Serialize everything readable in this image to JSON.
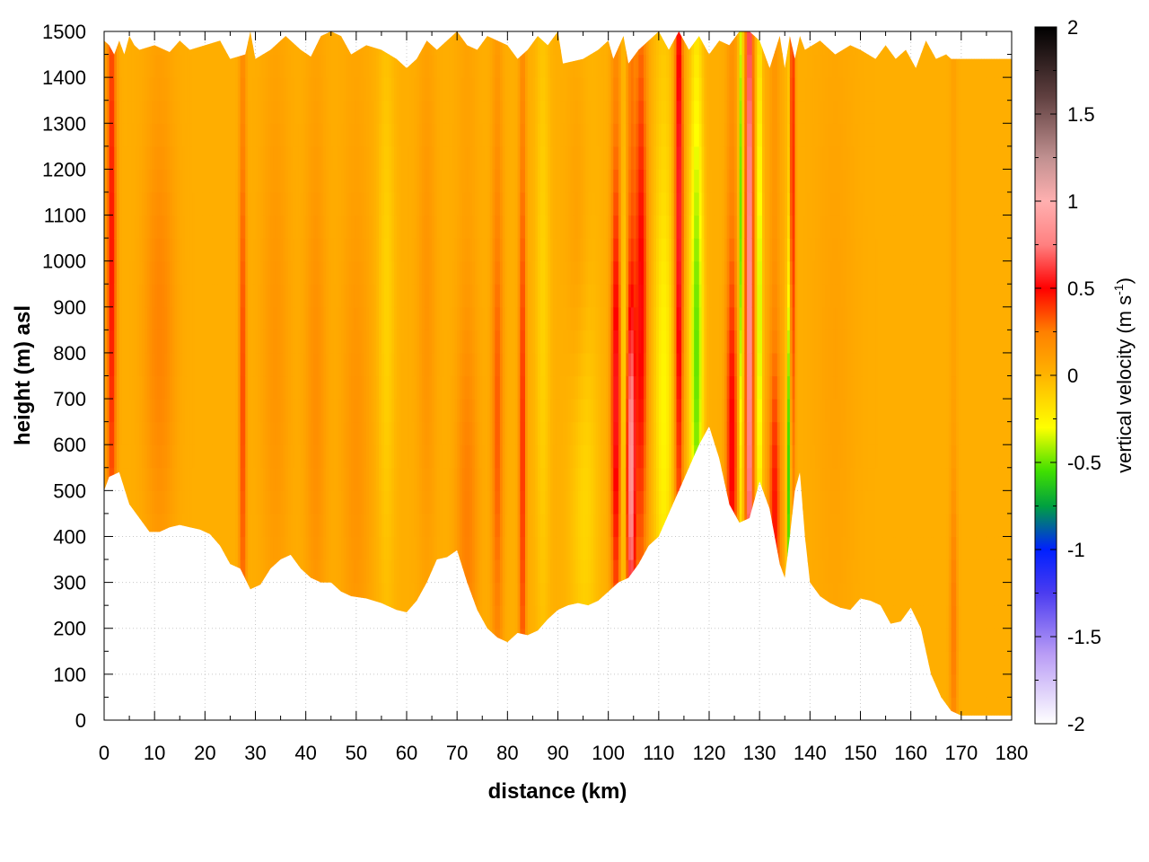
{
  "chart_data": {
    "type": "heatmap",
    "title": "",
    "xlabel": "distance (km)",
    "ylabel": "height (m) asl",
    "xlim": [
      0,
      180
    ],
    "ylim": [
      0,
      1500
    ],
    "x_ticks": [
      0,
      10,
      20,
      30,
      40,
      50,
      60,
      70,
      80,
      90,
      100,
      110,
      120,
      130,
      140,
      150,
      160,
      170,
      180
    ],
    "y_ticks": [
      0,
      100,
      200,
      300,
      400,
      500,
      600,
      700,
      800,
      900,
      1000,
      1100,
      1200,
      1300,
      1400,
      1500
    ],
    "grid": true,
    "colorbar": {
      "label_main": "vertical velocity (m s",
      "label_sup": "-1",
      "label_end": ")",
      "range": [
        -2,
        2
      ],
      "ticks": [
        "2",
        "1.5",
        "1",
        "0.5",
        "0",
        "-0.5",
        "-1",
        "-1.5",
        "-2"
      ],
      "tick_values": [
        2,
        1.5,
        1,
        0.5,
        0,
        -0.5,
        -1,
        -1.5,
        -2
      ],
      "colors": [
        {
          "v": -2.0,
          "c": "#ffffff"
        },
        {
          "v": -1.6,
          "c": "#b99cf5"
        },
        {
          "v": -1.25,
          "c": "#4b3cf0"
        },
        {
          "v": -1.0,
          "c": "#0020ff"
        },
        {
          "v": -0.75,
          "c": "#00a040"
        },
        {
          "v": -0.55,
          "c": "#40e000"
        },
        {
          "v": -0.3,
          "c": "#ffff00"
        },
        {
          "v": 0.0,
          "c": "#ffb400"
        },
        {
          "v": 0.25,
          "c": "#ff8000"
        },
        {
          "v": 0.5,
          "c": "#ff0000"
        },
        {
          "v": 0.75,
          "c": "#ff8080"
        },
        {
          "v": 1.0,
          "c": "#ffb0b0"
        },
        {
          "v": 1.25,
          "c": "#c09090"
        },
        {
          "v": 1.6,
          "c": "#604040"
        },
        {
          "v": 2.0,
          "c": "#000000"
        }
      ]
    },
    "background_w": 0.03,
    "terrain_bottom": [
      [
        0,
        500
      ],
      [
        1,
        530
      ],
      [
        3,
        540
      ],
      [
        5,
        470
      ],
      [
        7,
        440
      ],
      [
        9,
        410
      ],
      [
        11,
        410
      ],
      [
        13,
        420
      ],
      [
        15,
        425
      ],
      [
        17,
        420
      ],
      [
        19,
        415
      ],
      [
        21,
        405
      ],
      [
        23,
        380
      ],
      [
        25,
        340
      ],
      [
        27,
        330
      ],
      [
        29,
        285
      ],
      [
        31,
        295
      ],
      [
        33,
        330
      ],
      [
        35,
        350
      ],
      [
        37,
        360
      ],
      [
        39,
        330
      ],
      [
        41,
        310
      ],
      [
        43,
        300
      ],
      [
        45,
        300
      ],
      [
        47,
        280
      ],
      [
        49,
        270
      ],
      [
        52,
        265
      ],
      [
        55,
        255
      ],
      [
        58,
        240
      ],
      [
        60,
        235
      ],
      [
        62,
        260
      ],
      [
        64,
        300
      ],
      [
        66,
        350
      ],
      [
        68,
        355
      ],
      [
        70,
        370
      ],
      [
        72,
        300
      ],
      [
        74,
        240
      ],
      [
        76,
        200
      ],
      [
        78,
        180
      ],
      [
        80,
        170
      ],
      [
        82,
        190
      ],
      [
        84,
        185
      ],
      [
        86,
        195
      ],
      [
        88,
        220
      ],
      [
        90,
        240
      ],
      [
        92,
        250
      ],
      [
        94,
        255
      ],
      [
        96,
        250
      ],
      [
        98,
        260
      ],
      [
        100,
        280
      ],
      [
        102,
        300
      ],
      [
        104,
        310
      ],
      [
        106,
        340
      ],
      [
        108,
        380
      ],
      [
        110,
        400
      ],
      [
        112,
        450
      ],
      [
        114,
        500
      ],
      [
        116,
        550
      ],
      [
        118,
        600
      ],
      [
        120,
        640
      ],
      [
        122,
        570
      ],
      [
        124,
        470
      ],
      [
        126,
        430
      ],
      [
        128,
        440
      ],
      [
        130,
        520
      ],
      [
        132,
        460
      ],
      [
        134,
        340
      ],
      [
        135,
        310
      ],
      [
        136,
        400
      ],
      [
        137,
        500
      ],
      [
        138,
        540
      ],
      [
        139,
        400
      ],
      [
        140,
        300
      ],
      [
        142,
        270
      ],
      [
        144,
        255
      ],
      [
        146,
        245
      ],
      [
        148,
        240
      ],
      [
        150,
        265
      ],
      [
        152,
        260
      ],
      [
        154,
        250
      ],
      [
        156,
        210
      ],
      [
        158,
        215
      ],
      [
        160,
        245
      ],
      [
        162,
        200
      ],
      [
        164,
        100
      ],
      [
        166,
        50
      ],
      [
        168,
        20
      ],
      [
        170,
        10
      ],
      [
        175,
        10
      ],
      [
        180,
        10
      ]
    ],
    "terrain_top": [
      [
        0,
        1480
      ],
      [
        1,
        1470
      ],
      [
        2,
        1450
      ],
      [
        3,
        1480
      ],
      [
        4,
        1450
      ],
      [
        5,
        1490
      ],
      [
        6,
        1470
      ],
      [
        7,
        1460
      ],
      [
        10,
        1470
      ],
      [
        13,
        1455
      ],
      [
        15,
        1480
      ],
      [
        17,
        1460
      ],
      [
        20,
        1470
      ],
      [
        23,
        1480
      ],
      [
        25,
        1440
      ],
      [
        28,
        1450
      ],
      [
        29,
        1500
      ],
      [
        30,
        1440
      ],
      [
        33,
        1460
      ],
      [
        36,
        1490
      ],
      [
        39,
        1460
      ],
      [
        41,
        1445
      ],
      [
        43,
        1490
      ],
      [
        45,
        1500
      ],
      [
        47,
        1490
      ],
      [
        49,
        1450
      ],
      [
        52,
        1470
      ],
      [
        55,
        1460
      ],
      [
        58,
        1440
      ],
      [
        60,
        1420
      ],
      [
        62,
        1440
      ],
      [
        64,
        1480
      ],
      [
        66,
        1460
      ],
      [
        68,
        1480
      ],
      [
        70,
        1500
      ],
      [
        72,
        1470
      ],
      [
        74,
        1460
      ],
      [
        76,
        1490
      ],
      [
        78,
        1480
      ],
      [
        80,
        1470
      ],
      [
        82,
        1440
      ],
      [
        84,
        1460
      ],
      [
        86,
        1490
      ],
      [
        88,
        1470
      ],
      [
        90,
        1500
      ],
      [
        91,
        1430
      ],
      [
        95,
        1440
      ],
      [
        98,
        1460
      ],
      [
        100,
        1480
      ],
      [
        101,
        1440
      ],
      [
        103,
        1490
      ],
      [
        104,
        1430
      ],
      [
        106,
        1460
      ],
      [
        108,
        1480
      ],
      [
        110,
        1500
      ],
      [
        112,
        1460
      ],
      [
        114,
        1500
      ],
      [
        116,
        1460
      ],
      [
        118,
        1490
      ],
      [
        120,
        1450
      ],
      [
        122,
        1480
      ],
      [
        124,
        1470
      ],
      [
        126,
        1500
      ],
      [
        128,
        1500
      ],
      [
        130,
        1480
      ],
      [
        132,
        1420
      ],
      [
        134,
        1490
      ],
      [
        135,
        1420
      ],
      [
        136,
        1490
      ],
      [
        137,
        1440
      ],
      [
        138,
        1490
      ],
      [
        139,
        1460
      ],
      [
        142,
        1480
      ],
      [
        145,
        1450
      ],
      [
        148,
        1470
      ],
      [
        150,
        1460
      ],
      [
        153,
        1440
      ],
      [
        155,
        1470
      ],
      [
        157,
        1440
      ],
      [
        159,
        1460
      ],
      [
        161,
        1420
      ],
      [
        163,
        1480
      ],
      [
        165,
        1440
      ],
      [
        167,
        1450
      ],
      [
        168,
        1440
      ],
      [
        170,
        1440
      ],
      [
        175,
        1440
      ],
      [
        180,
        1440
      ]
    ],
    "features": [
      {
        "x": 1.5,
        "sigma": 0.7,
        "w": 0.45,
        "yc": 1000,
        "ys": 500
      },
      {
        "x": 11,
        "sigma": 2.2,
        "w": 0.2,
        "yc": 850,
        "ys": 300
      },
      {
        "x": 27.5,
        "sigma": 0.5,
        "w": 0.35,
        "yc": 700,
        "ys": 500
      },
      {
        "x": 34,
        "sigma": 2.0,
        "w": 0.12,
        "yc": 800,
        "ys": 400
      },
      {
        "x": 42,
        "sigma": 1.5,
        "w": 0.15,
        "yc": 700,
        "ys": 400
      },
      {
        "x": 50,
        "sigma": 2.0,
        "w": 0.13,
        "yc": 600,
        "ys": 400
      },
      {
        "x": 56,
        "sigma": 1.2,
        "w": -0.15,
        "yc": 900,
        "ys": 400
      },
      {
        "x": 64,
        "sigma": 1.3,
        "w": 0.12,
        "yc": 900,
        "ys": 400
      },
      {
        "x": 72,
        "sigma": 1.5,
        "w": 0.22,
        "yc": 450,
        "ys": 300
      },
      {
        "x": 78,
        "sigma": 0.8,
        "w": 0.3,
        "yc": 650,
        "ys": 400
      },
      {
        "x": 83,
        "sigma": 0.5,
        "w": 0.4,
        "yc": 600,
        "ys": 500
      },
      {
        "x": 87,
        "sigma": 1.0,
        "w": -0.15,
        "yc": 900,
        "ys": 500
      },
      {
        "x": 95,
        "sigma": 2.0,
        "w": -0.2,
        "yc": 500,
        "ys": 300
      },
      {
        "x": 94,
        "sigma": 1.5,
        "w": 0.12,
        "yc": 1000,
        "ys": 300
      },
      {
        "x": 101.5,
        "sigma": 0.7,
        "w": 0.55,
        "yc": 700,
        "ys": 350
      },
      {
        "x": 103,
        "sigma": 0.3,
        "w": -0.3,
        "yc": 700,
        "ys": 300
      },
      {
        "x": 104.5,
        "sigma": 0.6,
        "w": 0.85,
        "yc": 550,
        "ys": 250
      },
      {
        "x": 106.5,
        "sigma": 0.9,
        "w": 0.5,
        "yc": 900,
        "ys": 400
      },
      {
        "x": 111,
        "sigma": 1.3,
        "w": -0.3,
        "yc": 700,
        "ys": 400
      },
      {
        "x": 114,
        "sigma": 0.6,
        "w": 0.6,
        "yc": 1100,
        "ys": 500
      },
      {
        "x": 117.5,
        "sigma": 0.9,
        "w": -0.55,
        "yc": 800,
        "ys": 400
      },
      {
        "x": 124.5,
        "sigma": 0.8,
        "w": 0.5,
        "yc": 600,
        "ys": 300
      },
      {
        "x": 126.3,
        "sigma": 0.3,
        "w": -0.55,
        "yc": 1100,
        "ys": 400
      },
      {
        "x": 128,
        "sigma": 0.5,
        "w": 0.9,
        "yc": 900,
        "ys": 700
      },
      {
        "x": 130,
        "sigma": 0.4,
        "w": -0.45,
        "yc": 900,
        "ys": 400
      },
      {
        "x": 133,
        "sigma": 0.8,
        "w": 0.45,
        "yc": 450,
        "ys": 250
      },
      {
        "x": 135.8,
        "sigma": 0.3,
        "w": -0.65,
        "yc": 550,
        "ys": 300
      },
      {
        "x": 136.5,
        "sigma": 0.4,
        "w": 0.45,
        "yc": 1200,
        "ys": 500
      },
      {
        "x": 145,
        "sigma": 3.0,
        "w": 0.06,
        "yc": 800,
        "ys": 500
      },
      {
        "x": 168.5,
        "sigma": 0.5,
        "w": 0.25,
        "yc": 200,
        "ys": 200
      }
    ]
  }
}
